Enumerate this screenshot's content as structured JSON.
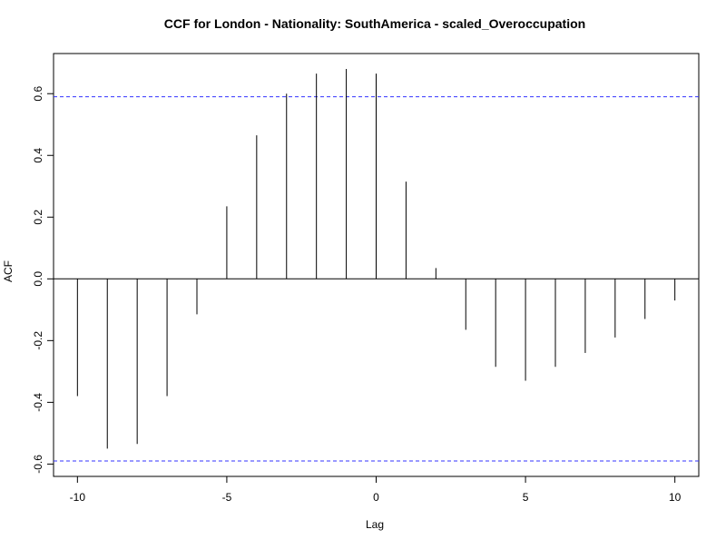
{
  "chart_data": {
    "type": "bar",
    "title": "CCF for London - Nationality: SouthAmerica - scaled_Overoccupation",
    "xlabel": "Lag",
    "ylabel": "ACF",
    "x": [
      -10,
      -9,
      -8,
      -7,
      -6,
      -5,
      -4,
      -3,
      -2,
      -1,
      0,
      1,
      2,
      3,
      4,
      5,
      6,
      7,
      8,
      9,
      10
    ],
    "values": [
      -0.38,
      -0.55,
      -0.535,
      -0.38,
      -0.115,
      0.235,
      0.465,
      0.6,
      0.665,
      0.68,
      0.665,
      0.315,
      0.035,
      -0.165,
      -0.285,
      -0.33,
      -0.285,
      -0.24,
      -0.19,
      -0.13,
      -0.07
    ],
    "xlim": [
      -10.8,
      10.8
    ],
    "ylim": [
      -0.64,
      0.73
    ],
    "xticks": [
      -10,
      -5,
      0,
      5,
      10
    ],
    "xtick_labels": [
      "-10",
      "-5",
      "0",
      "5",
      "10"
    ],
    "yticks": [
      -0.6,
      -0.4,
      -0.2,
      0.0,
      0.2,
      0.4,
      0.6
    ],
    "ytick_labels": [
      "-0.6",
      "-0.4",
      "-0.2",
      "0.0",
      "0.2",
      "0.4",
      "0.6"
    ],
    "confidence_band": [
      -0.59,
      0.59
    ],
    "grid": false,
    "colors": {
      "bars": "#000000",
      "confidence": "#3333ff",
      "axis": "#000000"
    }
  }
}
